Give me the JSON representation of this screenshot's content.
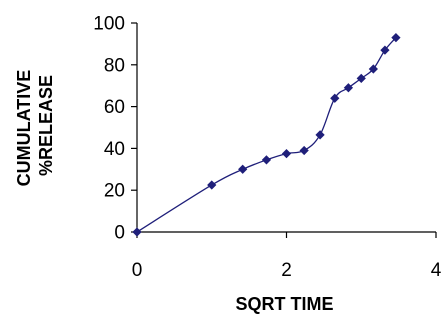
{
  "chart_data": {
    "type": "scatter",
    "title": "",
    "xlabel": "SQRT TIME",
    "ylabel_lines": [
      "CUMULATIVE",
      "%RELEASE"
    ],
    "xlim": [
      0,
      4
    ],
    "ylim": [
      0,
      100
    ],
    "x_ticks": [
      0,
      2,
      4
    ],
    "y_ticks": [
      0,
      20,
      40,
      60,
      80,
      100
    ],
    "grid": false,
    "legend": "none",
    "line_style": "smoothed",
    "series": [
      {
        "color": "#1f1f7a",
        "marker": "diamond",
        "x": [
          0,
          1.0,
          1.414,
          1.732,
          2.0,
          2.236,
          2.449,
          2.646,
          2.828,
          3.0,
          3.162,
          3.317,
          3.464
        ],
        "y": [
          0,
          22.5,
          30,
          34.5,
          37.5,
          39,
          46.5,
          64,
          69,
          73.5,
          78,
          87,
          93
        ]
      }
    ]
  }
}
